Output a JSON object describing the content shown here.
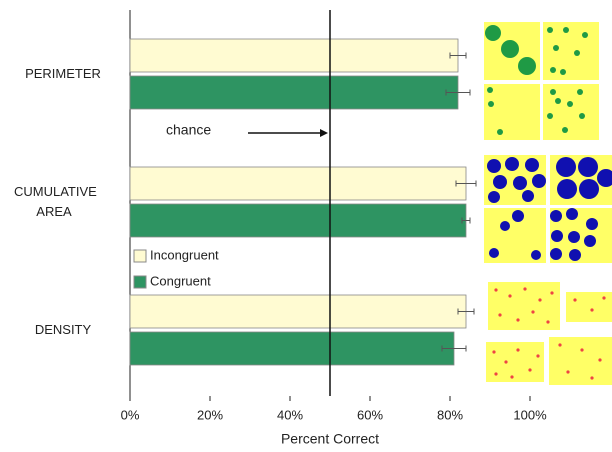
{
  "chart_data": {
    "type": "hbar_error",
    "categories": [
      "PERIMETER",
      "CUMULATIVE AREA",
      "DENSITY"
    ],
    "series": [
      {
        "name": "Incongruent",
        "color": "#fffbd2",
        "values": [
          82,
          84,
          84
        ],
        "errors": [
          2,
          2.5,
          2
        ]
      },
      {
        "name": "Congruent",
        "color": "#2e9462",
        "values": [
          82,
          84,
          81
        ],
        "errors": [
          3,
          1,
          3
        ]
      }
    ],
    "xlim": [
      0,
      100
    ],
    "xticks": [
      {
        "value": 0,
        "label": "0%"
      },
      {
        "value": 20,
        "label": "20%"
      },
      {
        "value": 40,
        "label": "40%"
      },
      {
        "value": 60,
        "label": "60%"
      },
      {
        "value": 80,
        "label": "80%"
      },
      {
        "value": 100,
        "label": "100%"
      }
    ],
    "x_label": "Percent Correct",
    "chance_line": {
      "value": 50,
      "label": "chance"
    }
  }
}
